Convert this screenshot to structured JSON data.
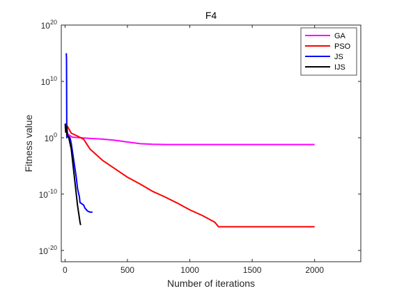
{
  "chart_data": {
    "type": "line",
    "title": "F4",
    "xlabel": "Number of iterations",
    "ylabel": "Fitness value",
    "xlim": [
      -30,
      2370
    ],
    "ylim_exponent": [
      -22,
      20
    ],
    "y_scale": "log",
    "x_ticks": [
      "0",
      "500",
      "1000",
      "1500",
      "2000"
    ],
    "y_ticks": [
      {
        "base": "10",
        "exp": "20"
      },
      {
        "base": "10",
        "exp": "10"
      },
      {
        "base": "10",
        "exp": "0"
      },
      {
        "base": "10",
        "exp": "-10"
      },
      {
        "base": "10",
        "exp": "-20"
      }
    ],
    "legend_position": "top-right",
    "grid": false,
    "series": [
      {
        "name": "GA",
        "color": "#ff00ff",
        "points": [
          [
            1,
            2
          ],
          [
            10,
            1
          ],
          [
            30,
            0.5
          ],
          [
            60,
            0.1
          ],
          [
            150,
            -0.05
          ],
          [
            300,
            -0.25
          ],
          [
            400,
            -0.45
          ],
          [
            500,
            -0.75
          ],
          [
            600,
            -1.05
          ],
          [
            700,
            -1.15
          ],
          [
            800,
            -1.2
          ],
          [
            1000,
            -1.2
          ],
          [
            1500,
            -1.2
          ],
          [
            2000,
            -1.2
          ]
        ]
      },
      {
        "name": "PSO",
        "color": "#ff0000",
        "points": [
          [
            1,
            2.5
          ],
          [
            20,
            2
          ],
          [
            50,
            0.8
          ],
          [
            100,
            0.3
          ],
          [
            150,
            -0.3
          ],
          [
            200,
            -2
          ],
          [
            300,
            -4
          ],
          [
            400,
            -5.5
          ],
          [
            500,
            -7
          ],
          [
            600,
            -8.2
          ],
          [
            700,
            -9.5
          ],
          [
            800,
            -10.5
          ],
          [
            900,
            -11.6
          ],
          [
            1000,
            -12.8
          ],
          [
            1100,
            -13.8
          ],
          [
            1200,
            -15
          ],
          [
            1230,
            -15.8
          ],
          [
            1500,
            -15.8
          ],
          [
            2000,
            -15.8
          ]
        ]
      },
      {
        "name": "JS",
        "color": "#0000ff",
        "points": [
          [
            10,
            15
          ],
          [
            12,
            14
          ],
          [
            14,
            0
          ],
          [
            16,
            1.8
          ],
          [
            20,
            0.5
          ],
          [
            30,
            0.2
          ],
          [
            40,
            0
          ],
          [
            50,
            -1
          ],
          [
            70,
            -4
          ],
          [
            90,
            -7
          ],
          [
            100,
            -9
          ],
          [
            110,
            -10
          ],
          [
            115,
            -10.5
          ],
          [
            120,
            -11.5
          ],
          [
            140,
            -11.8
          ],
          [
            150,
            -12
          ],
          [
            160,
            -12.5
          ],
          [
            180,
            -13
          ],
          [
            200,
            -13.2
          ],
          [
            220,
            -13.2
          ]
        ]
      },
      {
        "name": "IJS",
        "color": "#000000",
        "points": [
          [
            1,
            2.5
          ],
          [
            5,
            1
          ],
          [
            10,
            2
          ],
          [
            15,
            0.5
          ],
          [
            20,
            0.3
          ],
          [
            30,
            0
          ],
          [
            40,
            -1
          ],
          [
            50,
            -2
          ],
          [
            60,
            -4
          ],
          [
            70,
            -6
          ],
          [
            80,
            -8
          ],
          [
            90,
            -10
          ],
          [
            100,
            -12
          ],
          [
            110,
            -13.5
          ],
          [
            120,
            -15
          ],
          [
            125,
            -15.5
          ]
        ]
      }
    ]
  }
}
